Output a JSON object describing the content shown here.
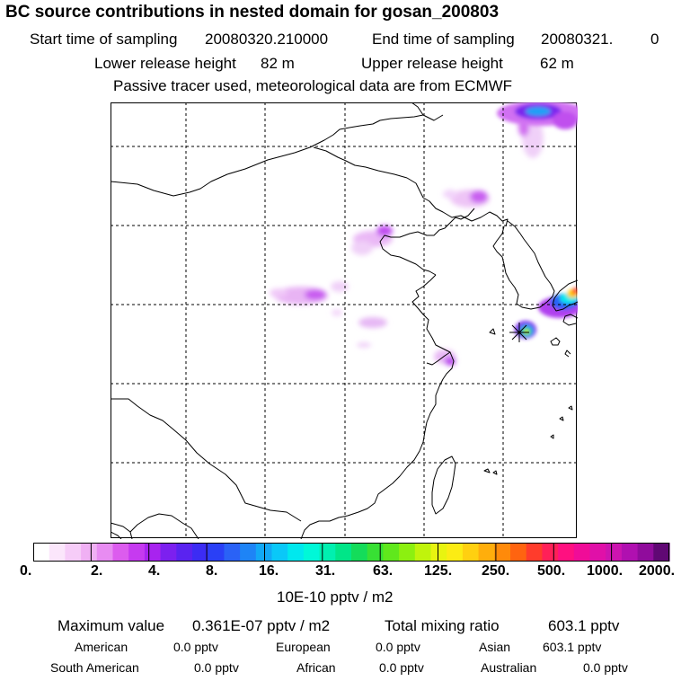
{
  "header": {
    "title": "BC  source contributions in nested domain for gosan_200803",
    "start_label": "Start time of sampling",
    "start_value": "20080320.210000",
    "end_label": "End time of sampling",
    "end_value": "20080321.",
    "end_extra": "0",
    "lower_label": "Lower release height",
    "lower_value": "82 m",
    "upper_label": "Upper release height",
    "upper_value": "62 m",
    "note": "Passive tracer used, meteorological data are from ECMWF"
  },
  "colorbar": {
    "tick_labels": [
      "0.",
      "2.",
      "4.",
      "8.",
      "16.",
      "31.",
      "63.",
      "125.",
      "250.",
      "500.",
      "1000.",
      "2000."
    ],
    "units": "10E-10 pptv / m2",
    "colors": [
      "#ffffff",
      "#fbe6fb",
      "#f6ccf8",
      "#f0b0f4",
      "#e88cf2",
      "#dc5cee",
      "#c63af0",
      "#a823ef",
      "#7c20ef",
      "#5a23f0",
      "#3c2cf4",
      "#2a40f6",
      "#2a62f6",
      "#1e84f6",
      "#12a8f6",
      "#0ac8f8",
      "#00e8ee",
      "#00f8d8",
      "#00f0b0",
      "#00e688",
      "#14dc5a",
      "#38e034",
      "#60e81c",
      "#8cf010",
      "#c0f40c",
      "#e8f410",
      "#fcec14",
      "#ffd010",
      "#ffae0c",
      "#ff8a0a",
      "#ff6410",
      "#ff3c2c",
      "#ff2058",
      "#ff1080",
      "#f00c98",
      "#e010a8",
      "#cc14b0",
      "#b010b0",
      "#900c9c",
      "#600874"
    ]
  },
  "stats": {
    "max_label": "Maximum value",
    "max_value": "0.361E-07 pptv / m2",
    "total_label": "Total mixing ratio",
    "total_value": "603.1 pptv",
    "regions": [
      {
        "name": "American",
        "value": "0.0 pptv"
      },
      {
        "name": "European",
        "value": "0.0 pptv"
      },
      {
        "name": "Asian",
        "value": "603.1 pptv"
      },
      {
        "name": "South American",
        "value": "0.0 pptv"
      },
      {
        "name": "African",
        "value": "0.0 pptv"
      },
      {
        "name": "Australian",
        "value": "0.0 pptv"
      }
    ]
  }
}
